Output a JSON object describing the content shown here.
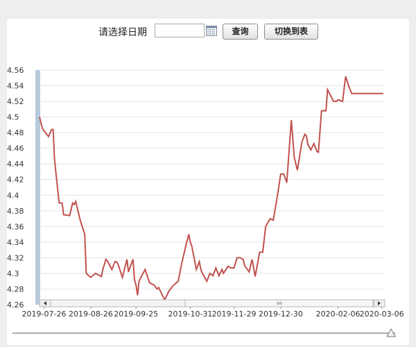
{
  "toolbar": {
    "date_label": "请选择日期",
    "date_value": "",
    "query_label": "查询",
    "switch_label": "切换到表"
  },
  "colors": {
    "line": "#c0504d",
    "grid": "#e4e4e4",
    "accent_bar": "#b7c9dc"
  },
  "chart_data": {
    "type": "line",
    "title": "",
    "xlabel": "",
    "ylabel": "",
    "ylim": [
      4.26,
      4.56
    ],
    "yticks": [
      "4.26",
      "4.28",
      "4.3",
      "4.32",
      "4.34",
      "4.36",
      "4.38",
      "4.4",
      "4.42",
      "4.44",
      "4.46",
      "4.48",
      "4.5",
      "4.52",
      "4.54",
      "4.56"
    ],
    "xlim": [
      "2019-07-23",
      "2020-03-08"
    ],
    "xticks": [
      "2019-07-26",
      "2019-08-26",
      "2019-09-25",
      "2019-10-31",
      "2019-11-29",
      "2019-12-30",
      "2020-02-06",
      "2020-03-06"
    ],
    "grid": true,
    "series": [
      {
        "x": [
          "2019-07-23",
          "2019-07-25",
          "2019-07-29",
          "2019-07-31",
          "2019-08-01",
          "2019-08-02",
          "2019-08-05",
          "2019-08-07",
          "2019-08-08",
          "2019-08-12",
          "2019-08-14",
          "2019-08-15",
          "2019-08-16",
          "2019-08-19",
          "2019-08-22",
          "2019-08-23",
          "2019-08-26",
          "2019-08-29",
          "2019-09-02",
          "2019-09-03",
          "2019-09-05",
          "2019-09-06",
          "2019-09-09",
          "2019-09-11",
          "2019-09-12",
          "2019-09-13",
          "2019-09-16",
          "2019-09-19",
          "2019-09-20",
          "2019-09-23",
          "2019-09-24",
          "2019-09-25",
          "2019-09-26",
          "2019-09-27",
          "2019-10-01",
          "2019-10-04",
          "2019-10-07",
          "2019-10-09",
          "2019-10-10",
          "2019-10-14",
          "2019-10-17",
          "2019-10-20",
          "2019-10-23",
          "2019-10-25",
          "2019-10-28",
          "2019-10-30",
          "2019-10-31",
          "2019-11-01",
          "2019-11-04",
          "2019-11-06",
          "2019-11-07",
          "2019-11-08",
          "2019-11-11",
          "2019-11-13",
          "2019-11-15",
          "2019-11-17",
          "2019-11-19",
          "2019-11-21",
          "2019-11-22",
          "2019-11-25",
          "2019-11-27",
          "2019-11-29",
          "2019-12-01",
          "2019-12-03",
          "2019-12-05",
          "2019-12-06",
          "2019-12-09",
          "2019-12-11",
          "2019-12-13",
          "2019-12-16",
          "2019-12-18",
          "2019-12-20",
          "2019-12-23",
          "2019-12-25",
          "2019-12-27",
          "2019-12-28",
          "2019-12-30",
          "2020-01-01",
          "2020-01-03",
          "2020-01-06",
          "2020-01-08",
          "2020-01-10",
          "2020-01-13",
          "2020-01-15",
          "2020-01-16",
          "2020-01-17",
          "2020-01-19",
          "2020-01-21",
          "2020-01-23",
          "2020-01-24",
          "2020-01-26",
          "2020-01-29",
          "2020-01-30",
          "2020-02-03",
          "2020-02-05",
          "2020-02-06",
          "2020-02-09",
          "2020-02-11",
          "2020-02-13",
          "2020-02-15",
          "2020-02-17",
          "2020-02-19",
          "2020-02-21",
          "2020-02-23",
          "2020-02-25",
          "2020-02-27",
          "2020-03-01",
          "2020-03-03",
          "2020-03-04",
          "2020-03-05",
          "2020-03-06",
          "2020-03-07"
        ],
        "y": [
          4.5,
          4.485,
          4.475,
          4.484,
          4.484,
          4.445,
          4.39,
          4.39,
          4.375,
          4.374,
          4.39,
          4.388,
          4.392,
          4.368,
          4.35,
          4.3,
          4.295,
          4.3,
          4.296,
          4.305,
          4.318,
          4.316,
          4.305,
          4.315,
          4.315,
          4.312,
          4.295,
          4.318,
          4.302,
          4.318,
          4.292,
          4.285,
          4.272,
          4.29,
          4.305,
          4.288,
          4.285,
          4.28,
          4.282,
          4.266,
          4.278,
          4.285,
          4.29,
          4.31,
          4.335,
          4.35,
          4.34,
          4.335,
          4.305,
          4.315,
          4.305,
          4.3,
          4.29,
          4.3,
          4.297,
          4.307,
          4.297,
          4.305,
          4.3,
          4.309,
          4.307,
          4.307,
          4.32,
          4.32,
          4.318,
          4.31,
          4.302,
          4.318,
          4.296,
          4.327,
          4.327,
          4.36,
          4.37,
          4.368,
          4.39,
          4.402,
          4.427,
          4.427,
          4.416,
          4.496,
          4.448,
          4.432,
          4.468,
          4.478,
          4.476,
          4.465,
          4.458,
          4.466,
          4.456,
          4.455,
          4.508,
          4.508,
          4.535,
          4.52,
          4.52,
          4.522,
          4.52,
          4.552,
          4.54,
          4.53,
          4.53,
          4.53,
          4.53,
          4.53,
          4.53,
          4.53,
          4.53,
          4.53,
          4.53,
          4.53,
          4.53,
          4.53
        ]
      }
    ]
  }
}
